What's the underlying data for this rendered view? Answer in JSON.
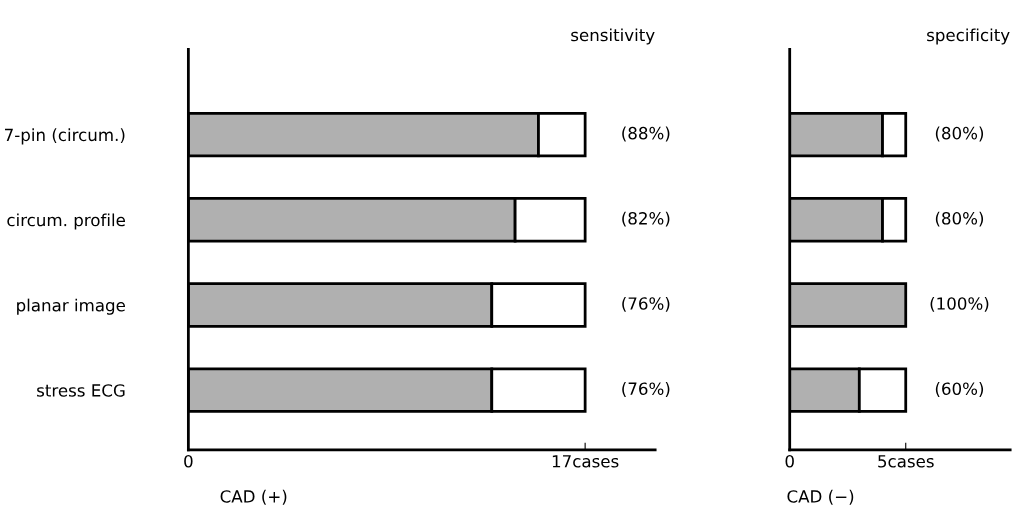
{
  "chart_data": [
    {
      "type": "bar",
      "orientation": "horizontal",
      "stacked": true,
      "title": "sensitivity",
      "xlabel": "CAD (+)",
      "categories": [
        "7-pin (circum.)",
        "circum. profile",
        "planar image",
        "stress ECG"
      ],
      "annotations": [
        "(88%)",
        "(82%)",
        "(76%)",
        "(76%)"
      ],
      "series": [
        {
          "color": "#b0b0b0",
          "values": [
            15,
            14,
            13,
            13
          ]
        },
        {
          "color": "#ffffff",
          "values": [
            2,
            3,
            4,
            4
          ]
        }
      ],
      "xlim": [
        0,
        20
      ],
      "xticks": [
        0,
        {
          "value": 17,
          "label": "17cases"
        }
      ]
    },
    {
      "type": "bar",
      "orientation": "horizontal",
      "stacked": true,
      "title": "specificity",
      "xlabel": "CAD (−)",
      "categories": [
        null,
        null,
        null,
        null
      ],
      "annotations": [
        "(80%)",
        "(80%)",
        "(100%)",
        "(60%)"
      ],
      "series": [
        {
          "color": "#b0b0b0",
          "values": [
            4,
            4,
            5,
            3
          ]
        },
        {
          "color": "#ffffff",
          "values": [
            1,
            1,
            0,
            2
          ]
        }
      ],
      "xlim": [
        0,
        9.5
      ],
      "xticks": [
        0,
        {
          "value": 5,
          "label": "5cases"
        }
      ],
      "tick_labels": "x"
    }
  ]
}
